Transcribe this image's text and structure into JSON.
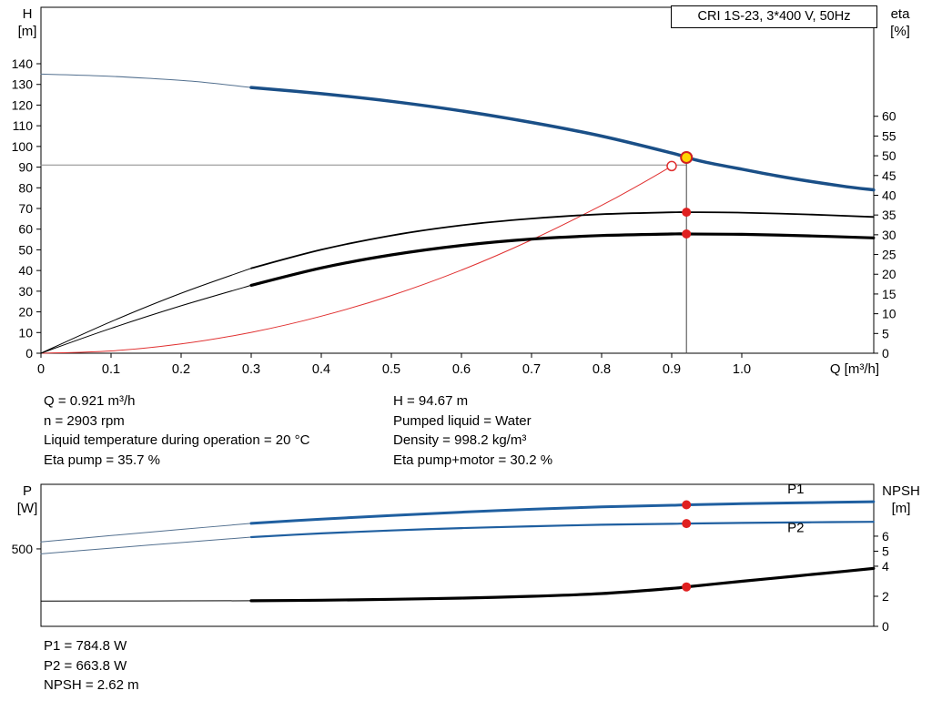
{
  "info_top": {
    "left": [
      "Q = 0.921 m³/h",
      "n = 2903 rpm",
      "Liquid temperature during operation = 20 °C",
      "Eta pump = 35.7 %"
    ],
    "right": [
      "H = 94.67 m",
      "Pumped liquid = Water",
      "Density = 998.2 kg/m³",
      "Eta pump+motor = 30.2 %"
    ]
  },
  "info_bottom": [
    "P1 = 784.8 W",
    "P2 = 663.8 W",
    "NPSH = 2.62 m"
  ],
  "colors": {
    "qh_blue": "#1a4f87",
    "power_blue": "#1f5fa0",
    "thin_lead": "#53708f",
    "red": "#e02020",
    "duty_yellow": "#ffd400"
  },
  "chart_data": [
    {
      "type": "line",
      "name": "qh-eta-chart",
      "title": "CRI 1S-23, 3*400 V, 50Hz",
      "xlabel": "Q [m³/h]",
      "ylabel_left_name": "H",
      "ylabel_left_unit": "[m]",
      "ylabel_right_name": "eta",
      "ylabel_right_unit": "[%]",
      "xlim": [
        0,
        1.1883
      ],
      "ylim_left": [
        0,
        167.3
      ],
      "ylim_right": [
        0,
        87.6
      ],
      "x_ticks": {
        "values": [
          0,
          0.1,
          0.2,
          0.3,
          0.4,
          0.5,
          0.6,
          0.7,
          0.8,
          0.9,
          1.0
        ],
        "labels": [
          "0",
          "0.1",
          "0.2",
          "0.3",
          "0.4",
          "0.5",
          "0.6",
          "0.7",
          "0.8",
          "0.9",
          "1.0"
        ]
      },
      "left_ticks": {
        "values": [
          0,
          10,
          20,
          30,
          40,
          50,
          60,
          70,
          80,
          90,
          100,
          110,
          120,
          130,
          140
        ],
        "labels": [
          "0",
          "10",
          "20",
          "30",
          "40",
          "50",
          "60",
          "70",
          "80",
          "90",
          "100",
          "110",
          "120",
          "130",
          "140"
        ]
      },
      "right_ticks": {
        "values": [
          0,
          5,
          10,
          15,
          20,
          25,
          30,
          35,
          40,
          45,
          50,
          55,
          60
        ],
        "labels": [
          "0",
          "5",
          "10",
          "15",
          "20",
          "25",
          "30",
          "35",
          "40",
          "45",
          "50",
          "55",
          "60"
        ]
      },
      "series": [
        {
          "name": "qh-curve-thin",
          "axis": "left",
          "color": "#53708f",
          "width": 1,
          "points": [
            [
              0,
              135
            ],
            [
              0.08,
              134.2
            ],
            [
              0.15,
              133.0
            ],
            [
              0.22,
              131.4
            ],
            [
              0.3,
              128.5
            ]
          ]
        },
        {
          "name": "qh-curve",
          "axis": "left",
          "color": "#1a4f87",
          "width": 3.5,
          "points": [
            [
              0.3,
              128.5
            ],
            [
              0.4,
              125.5
            ],
            [
              0.5,
              121.8
            ],
            [
              0.6,
              117.2
            ],
            [
              0.7,
              111.6
            ],
            [
              0.8,
              105.0
            ],
            [
              0.9,
              96.8
            ],
            [
              0.921,
              94.67
            ],
            [
              0.95,
              92.3
            ],
            [
              1.0,
              89.0
            ],
            [
              1.05,
              85.8
            ],
            [
              1.1,
              83.0
            ],
            [
              1.15,
              80.5
            ],
            [
              1.188,
              79.0
            ]
          ]
        },
        {
          "name": "system-curve",
          "axis": "left",
          "color": "#e03030",
          "width": 1,
          "points": [
            [
              0,
              0
            ],
            [
              0.1,
              1.1
            ],
            [
              0.2,
              4.5
            ],
            [
              0.3,
              10.1
            ],
            [
              0.4,
              17.9
            ],
            [
              0.5,
              27.9
            ],
            [
              0.6,
              40.2
            ],
            [
              0.7,
              54.8
            ],
            [
              0.8,
              71.5
            ],
            [
              0.85,
              80.7
            ],
            [
              0.9,
              90.5
            ]
          ]
        },
        {
          "name": "duty-head-refline",
          "axis": "left",
          "color": "#888888",
          "width": 1,
          "points": [
            [
              0,
              91
            ],
            [
              0.921,
              91
            ]
          ]
        },
        {
          "name": "duty-flow-refline",
          "axis": "left",
          "color": "#444444",
          "width": 1,
          "points": [
            [
              0.921,
              0
            ],
            [
              0.921,
              94.67
            ]
          ]
        },
        {
          "name": "eta-pump-curve-thin",
          "axis": "right",
          "color": "#000000",
          "width": 1,
          "points": [
            [
              0,
              0
            ],
            [
              0.1,
              8.0
            ],
            [
              0.2,
              15.2
            ],
            [
              0.3,
              21.5
            ]
          ]
        },
        {
          "name": "eta-pump-curve",
          "axis": "right",
          "color": "#000000",
          "width": 1.8,
          "points": [
            [
              0.3,
              21.5
            ],
            [
              0.4,
              26.2
            ],
            [
              0.5,
              29.8
            ],
            [
              0.6,
              32.4
            ],
            [
              0.7,
              34.1
            ],
            [
              0.8,
              35.2
            ],
            [
              0.9,
              35.68
            ],
            [
              0.921,
              35.7
            ],
            [
              1.0,
              35.6
            ],
            [
              1.1,
              35.1
            ],
            [
              1.188,
              34.5
            ]
          ]
        },
        {
          "name": "eta-motor-curve-thin",
          "axis": "right",
          "color": "#000000",
          "width": 1,
          "points": [
            [
              0,
              0
            ],
            [
              0.1,
              6.3
            ],
            [
              0.2,
              12.0
            ],
            [
              0.3,
              17.2
            ]
          ]
        },
        {
          "name": "eta-motor-curve",
          "axis": "right",
          "color": "#000000",
          "width": 3.2,
          "points": [
            [
              0.3,
              17.2
            ],
            [
              0.4,
              21.6
            ],
            [
              0.5,
              24.9
            ],
            [
              0.6,
              27.3
            ],
            [
              0.7,
              28.9
            ],
            [
              0.8,
              29.8
            ],
            [
              0.9,
              30.2
            ],
            [
              0.921,
              30.2
            ],
            [
              1.0,
              30.1
            ],
            [
              1.1,
              29.7
            ],
            [
              1.188,
              29.2
            ]
          ]
        }
      ],
      "markers": [
        {
          "name": "system-duty-marker",
          "q": 0.9,
          "v": 90.5,
          "axis": "left",
          "r": 5,
          "fill": "#ffffff",
          "stroke": "#e03030",
          "sw": 1.5
        },
        {
          "name": "duty-point-marker",
          "q": 0.921,
          "v": 94.67,
          "axis": "left",
          "r": 6,
          "fill": "#ffd400",
          "stroke": "#d02020",
          "sw": 2
        },
        {
          "name": "eta-pump-duty-marker",
          "q": 0.921,
          "v": 35.7,
          "axis": "right",
          "r": 5,
          "fill": "#e02020"
        },
        {
          "name": "eta-motor-duty-marker",
          "q": 0.921,
          "v": 30.2,
          "axis": "right",
          "r": 5,
          "fill": "#e02020"
        }
      ],
      "annotations": []
    },
    {
      "type": "line",
      "name": "power-npsh-chart",
      "title": "",
      "xlabel": "",
      "ylabel_left_name": "P",
      "ylabel_left_unit": "[W]",
      "ylabel_right_name": "NPSH",
      "ylabel_right_unit": "[m]",
      "xlim": [
        0,
        1.1883
      ],
      "ylim_left": [
        0,
        917
      ],
      "ylim_right": [
        0,
        9.45
      ],
      "x_ticks": {
        "values": [],
        "labels": []
      },
      "left_ticks": {
        "values": [
          500
        ],
        "labels": [
          "500"
        ]
      },
      "right_ticks": {
        "values": [
          6,
          5,
          4,
          2,
          0
        ],
        "labels": [
          "6",
          "5",
          "4",
          "2",
          "0"
        ]
      },
      "series": [
        {
          "name": "p1-curve-thin",
          "axis": "left",
          "color": "#53708f",
          "width": 1,
          "points": [
            [
              0,
              545
            ],
            [
              0.1,
              586
            ],
            [
              0.2,
              626
            ],
            [
              0.3,
              665
            ]
          ]
        },
        {
          "name": "p1-curve",
          "axis": "left",
          "color": "#1f5fa0",
          "width": 3,
          "points": [
            [
              0.3,
              665
            ],
            [
              0.4,
              692
            ],
            [
              0.5,
              716
            ],
            [
              0.6,
              737
            ],
            [
              0.7,
              756
            ],
            [
              0.8,
              771
            ],
            [
              0.9,
              782
            ],
            [
              0.921,
              784.8
            ],
            [
              1.0,
              792
            ],
            [
              1.1,
              799
            ],
            [
              1.188,
              805
            ]
          ]
        },
        {
          "name": "p2-curve-thin",
          "axis": "left",
          "color": "#53708f",
          "width": 1,
          "points": [
            [
              0,
              468
            ],
            [
              0.1,
              505
            ],
            [
              0.2,
              541
            ],
            [
              0.3,
              576
            ]
          ]
        },
        {
          "name": "p2-curve",
          "axis": "left",
          "color": "#1f5fa0",
          "width": 2.2,
          "points": [
            [
              0.3,
              576
            ],
            [
              0.4,
              600
            ],
            [
              0.5,
              619
            ],
            [
              0.6,
              634
            ],
            [
              0.7,
              646
            ],
            [
              0.8,
              656
            ],
            [
              0.9,
              662
            ],
            [
              0.921,
              663.8
            ],
            [
              1.0,
              668
            ],
            [
              1.1,
              672
            ],
            [
              1.188,
              675
            ]
          ]
        },
        {
          "name": "npsh-curve-thin",
          "axis": "right",
          "color": "#000000",
          "width": 1,
          "points": [
            [
              0,
              1.68
            ],
            [
              0.15,
              1.69
            ],
            [
              0.3,
              1.7
            ]
          ]
        },
        {
          "name": "npsh-curve",
          "axis": "right",
          "color": "#000000",
          "width": 3.2,
          "points": [
            [
              0.3,
              1.7
            ],
            [
              0.4,
              1.74
            ],
            [
              0.5,
              1.8
            ],
            [
              0.6,
              1.88
            ],
            [
              0.7,
              2.0
            ],
            [
              0.8,
              2.18
            ],
            [
              0.9,
              2.52
            ],
            [
              0.921,
              2.62
            ],
            [
              1.0,
              3.0
            ],
            [
              1.05,
              3.22
            ],
            [
              1.1,
              3.45
            ],
            [
              1.15,
              3.68
            ],
            [
              1.188,
              3.85
            ]
          ]
        }
      ],
      "markers": [
        {
          "name": "p1-duty-marker",
          "q": 0.921,
          "v": 784.8,
          "axis": "left",
          "r": 5,
          "fill": "#e02020"
        },
        {
          "name": "p2-duty-marker",
          "q": 0.921,
          "v": 663.8,
          "axis": "left",
          "r": 5,
          "fill": "#e02020"
        },
        {
          "name": "npsh-duty-marker",
          "q": 0.921,
          "v": 2.62,
          "axis": "right",
          "r": 5,
          "fill": "#e02020"
        }
      ],
      "annotations": [
        {
          "name": "p1-curve-label",
          "text": "P1",
          "q": 1.065,
          "v": 858,
          "axis": "left",
          "color": "#1f5fa0"
        },
        {
          "name": "p2-curve-label",
          "text": "P2",
          "q": 1.065,
          "v": 607,
          "axis": "left",
          "color": "#1f5fa0"
        }
      ]
    }
  ]
}
